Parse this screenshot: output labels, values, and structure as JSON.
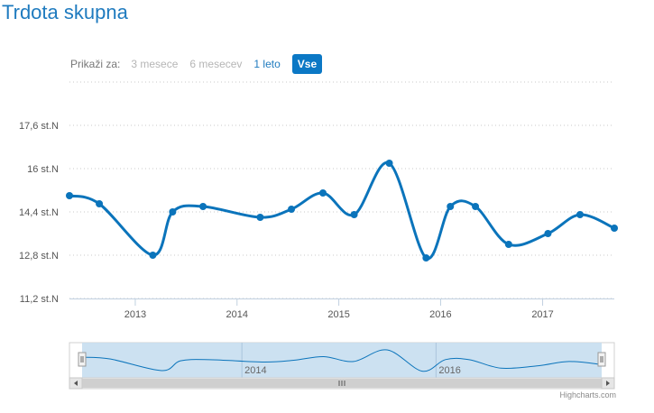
{
  "title": "Trdota skupna",
  "range_selector": {
    "label": "Prikaži za:",
    "buttons": [
      {
        "label": "3 mesece",
        "state": "disabled"
      },
      {
        "label": "6 mesecev",
        "state": "disabled"
      },
      {
        "label": "1 leto",
        "state": "active"
      },
      {
        "label": "Vse",
        "state": "selected"
      }
    ]
  },
  "credit": "Highcharts.com",
  "colors": {
    "series": "#0b74bb",
    "navigator_fill": "#c6def0",
    "accent": "#1f7bbf"
  },
  "chart_data": {
    "type": "line",
    "title": "Trdota skupna",
    "ylim": [
      11.2,
      19.2
    ],
    "yticks": [
      11.2,
      12.8,
      14.4,
      16,
      17.6
    ],
    "ytick_labels": [
      "11,2 st.N",
      "12,8 st.N",
      "14,4 st.N",
      "16 st.N",
      "17,6 st.N"
    ],
    "xlim": [
      "2012-05-10",
      "2017-09-15"
    ],
    "xticks": [
      "2013-01-01",
      "2014-01-01",
      "2015-01-01",
      "2016-01-01",
      "2017-01-01"
    ],
    "xtick_labels": [
      "2013",
      "2014",
      "2015",
      "2016",
      "2017"
    ],
    "grid": "horizontal-dotted",
    "series": [
      {
        "x": [
          "2012-05-10",
          "2012-08-25",
          "2013-03-05",
          "2013-05-15",
          "2013-09-01",
          "2014-03-25",
          "2014-07-15",
          "2014-11-05",
          "2015-02-25",
          "2015-07-01",
          "2015-11-10",
          "2016-02-05",
          "2016-05-05",
          "2016-09-01",
          "2017-01-20",
          "2017-05-15",
          "2017-09-15"
        ],
        "y": [
          15.0,
          14.7,
          12.8,
          14.4,
          14.6,
          14.2,
          14.5,
          15.1,
          14.3,
          16.2,
          12.7,
          14.6,
          14.6,
          13.2,
          13.6,
          14.3,
          13.8
        ]
      }
    ],
    "navigator_xtick_labels": [
      "2014",
      "2016"
    ]
  }
}
